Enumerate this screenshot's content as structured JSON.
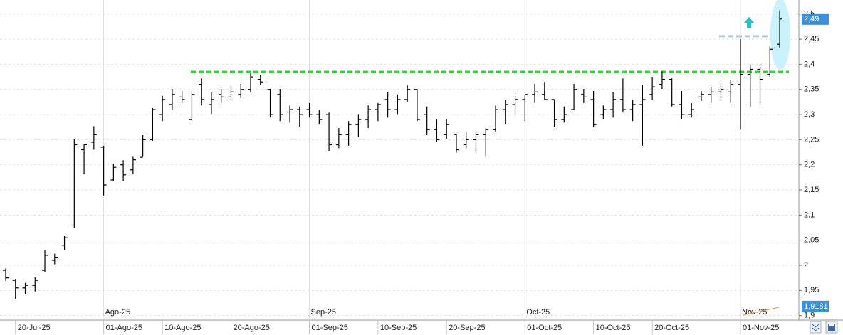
{
  "chart_data": {
    "type": "ohlc",
    "color": "#000000",
    "grid": true,
    "ylim": [
      1.891,
      2.528
    ],
    "yticks": [
      {
        "value": 1.9,
        "label": "1,9"
      },
      {
        "value": 1.95,
        "label": "1,95"
      },
      2,
      {
        "value": 2.05,
        "label": "2,05"
      },
      {
        "value": 2.1,
        "label": "2,1"
      },
      {
        "value": 2.15,
        "label": "2,15"
      },
      {
        "value": 2.2,
        "label": "2,2"
      },
      {
        "value": 2.25,
        "label": "2,25"
      },
      {
        "value": 2.3,
        "label": "2,3"
      },
      {
        "value": 2.35,
        "label": "2,35"
      },
      {
        "value": 2.4,
        "label": "2,4"
      },
      {
        "value": 2.45,
        "label": "2,45"
      },
      {
        "value": 2.5,
        "label": "2,5"
      }
    ],
    "categories": [
      null,
      "20-Jul-25",
      null,
      null,
      null,
      null,
      null,
      null,
      null,
      null,
      "01-Ago-25",
      null,
      null,
      null,
      null,
      null,
      "10-Ago-25",
      null,
      null,
      null,
      null,
      null,
      null,
      "20-Ago-25",
      null,
      null,
      null,
      null,
      null,
      null,
      null,
      "01-Sep-25",
      null,
      null,
      null,
      null,
      null,
      null,
      "10-Sep-25",
      null,
      null,
      null,
      null,
      null,
      null,
      "20-Sep-25",
      null,
      null,
      null,
      null,
      null,
      null,
      null,
      "01-Oct-25",
      null,
      null,
      null,
      null,
      null,
      null,
      "10-Oct-25",
      null,
      null,
      null,
      null,
      null,
      "20-Oct-25",
      null,
      null,
      null,
      null,
      null,
      null,
      null,
      null,
      "01-Nov-25",
      null,
      null,
      null,
      null
    ],
    "month_labels": [
      null,
      null,
      null,
      null,
      null,
      null,
      null,
      null,
      null,
      null,
      "Ago-25",
      null,
      null,
      null,
      null,
      null,
      null,
      null,
      null,
      null,
      null,
      null,
      null,
      null,
      null,
      null,
      null,
      null,
      null,
      null,
      null,
      "Sep-25",
      null,
      null,
      null,
      null,
      null,
      null,
      null,
      null,
      null,
      null,
      null,
      null,
      null,
      null,
      null,
      null,
      null,
      null,
      null,
      null,
      null,
      "Oct-25",
      null,
      null,
      null,
      null,
      null,
      null,
      null,
      null,
      null,
      null,
      null,
      null,
      null,
      null,
      null,
      null,
      null,
      null,
      null,
      null,
      null,
      "Nov-25",
      null,
      null,
      null,
      null
    ],
    "open": [
      1.99,
      1.97,
      1.955,
      1.96,
      1.99,
      2.01,
      2.04,
      2.08,
      2.23,
      2.245,
      2.235,
      2.17,
      2.2,
      2.19,
      2.215,
      2.25,
      2.3,
      2.32,
      2.335,
      2.29,
      2.36,
      2.32,
      2.34,
      2.335,
      2.34,
      2.35,
      2.37,
      2.35,
      2.34,
      2.305,
      2.31,
      2.31,
      2.3,
      2.3,
      2.24,
      2.26,
      2.28,
      2.29,
      2.31,
      2.33,
      2.31,
      2.33,
      2.35,
      2.3,
      2.27,
      2.26,
      2.26,
      2.24,
      2.25,
      2.26,
      2.27,
      2.31,
      2.32,
      2.33,
      2.34,
      2.34,
      2.33,
      2.29,
      2.31,
      2.34,
      2.33,
      2.3,
      2.31,
      2.33,
      2.31,
      2.32,
      2.34,
      2.36,
      2.37,
      2.32,
      2.3,
      2.335,
      2.34,
      2.345,
      2.345,
      2.36,
      2.38,
      2.39,
      2.38,
      2.44
    ],
    "high": [
      1.994,
      1.973,
      1.965,
      1.976,
      2.03,
      2.023,
      2.058,
      2.252,
      2.242,
      2.277,
      2.238,
      2.202,
      2.209,
      2.216,
      2.259,
      2.313,
      2.337,
      2.351,
      2.347,
      2.347,
      2.372,
      2.344,
      2.351,
      2.358,
      2.361,
      2.382,
      2.379,
      2.351,
      2.351,
      2.318,
      2.316,
      2.323,
      2.309,
      2.304,
      2.273,
      2.287,
      2.301,
      2.318,
      2.323,
      2.344,
      2.34,
      2.358,
      2.351,
      2.316,
      2.29,
      2.29,
      2.262,
      2.266,
      2.266,
      2.273,
      2.318,
      2.33,
      2.34,
      2.34,
      2.361,
      2.365,
      2.33,
      2.316,
      2.361,
      2.351,
      2.347,
      2.318,
      2.344,
      2.372,
      2.33,
      2.358,
      2.375,
      2.386,
      2.372,
      2.347,
      2.323,
      2.347,
      2.355,
      2.361,
      2.369,
      2.45,
      2.4,
      2.398,
      2.436,
      2.507
    ],
    "low": [
      1.969,
      1.933,
      1.942,
      1.948,
      1.986,
      2.002,
      2.03,
      2.075,
      2.181,
      2.23,
      2.139,
      2.167,
      2.167,
      2.181,
      2.216,
      2.248,
      2.287,
      2.309,
      2.323,
      2.287,
      2.318,
      2.301,
      2.323,
      2.33,
      2.333,
      2.344,
      2.358,
      2.294,
      2.287,
      2.284,
      2.276,
      2.294,
      2.28,
      2.228,
      2.233,
      2.238,
      2.256,
      2.273,
      2.287,
      2.294,
      2.301,
      2.325,
      2.287,
      2.259,
      2.245,
      2.252,
      2.224,
      2.233,
      2.224,
      2.216,
      2.266,
      2.28,
      2.299,
      2.287,
      2.323,
      2.33,
      2.276,
      2.284,
      2.309,
      2.323,
      2.276,
      2.29,
      2.294,
      2.304,
      2.287,
      2.238,
      2.33,
      2.351,
      2.316,
      2.29,
      2.294,
      2.327,
      2.323,
      2.33,
      2.323,
      2.27,
      2.316,
      2.318,
      2.375,
      2.432
    ],
    "close": [
      1.975,
      1.955,
      1.96,
      1.97,
      2.02,
      2.015,
      2.055,
      2.24,
      2.24,
      2.26,
      2.16,
      2.195,
      2.18,
      2.21,
      2.25,
      2.31,
      2.33,
      2.34,
      2.33,
      2.34,
      2.33,
      2.33,
      2.335,
      2.345,
      2.35,
      2.375,
      2.365,
      2.3,
      2.3,
      2.31,
      2.3,
      2.3,
      2.29,
      2.24,
      2.26,
      2.28,
      2.29,
      2.31,
      2.32,
      2.31,
      2.33,
      2.35,
      2.29,
      2.27,
      2.25,
      2.28,
      2.23,
      2.25,
      2.26,
      2.27,
      2.31,
      2.32,
      2.33,
      2.34,
      2.345,
      2.33,
      2.29,
      2.3,
      2.35,
      2.335,
      2.28,
      2.31,
      2.33,
      2.31,
      2.32,
      2.33,
      2.355,
      2.37,
      2.32,
      2.3,
      2.31,
      2.34,
      2.345,
      2.35,
      2.36,
      2.38,
      2.39,
      2.37,
      2.43,
      2.49
    ],
    "hlines": [
      {
        "value": 2.385,
        "color": "#22dd22"
      },
      {
        "value": 2.456,
        "color": "#a9c9e2"
      }
    ],
    "price_labels": [
      {
        "value": 2.49,
        "label": "2,49"
      },
      {
        "value": 1.9181,
        "label": "1,9181"
      }
    ]
  }
}
